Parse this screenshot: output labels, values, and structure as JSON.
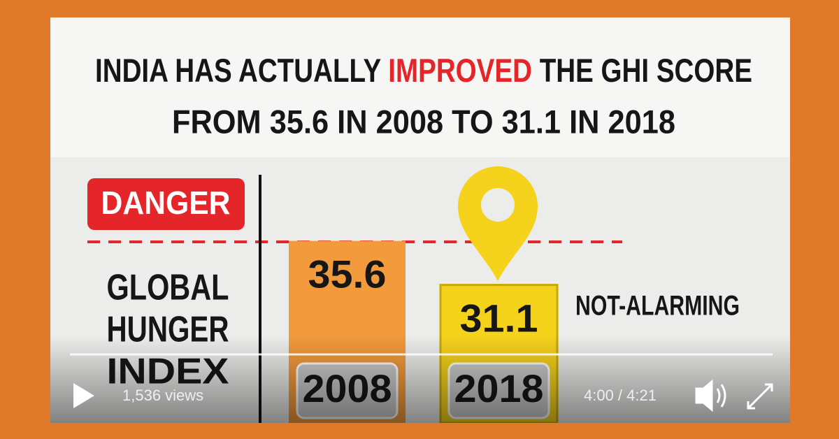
{
  "header": {
    "title_line1": [
      "INDIA HAS ACTUALLY ",
      "IMPROVED",
      " THE GHI SCORE"
    ],
    "title_line2": "FROM 35.6 IN 2008 TO 31.1 IN 2018"
  },
  "danger_label": "DANGER",
  "axis_label": [
    "GLOBAL",
    "HUNGER",
    "INDEX"
  ],
  "bars": [
    {
      "value": 35.6,
      "year": "2008",
      "color": "#f29a3c"
    },
    {
      "value": 31.1,
      "year": "2018",
      "color": "#f5d21c"
    }
  ],
  "status_label": "NOT-ALARMING",
  "player": {
    "views": "1,536 views",
    "time": "4:00 / 4:21"
  }
}
